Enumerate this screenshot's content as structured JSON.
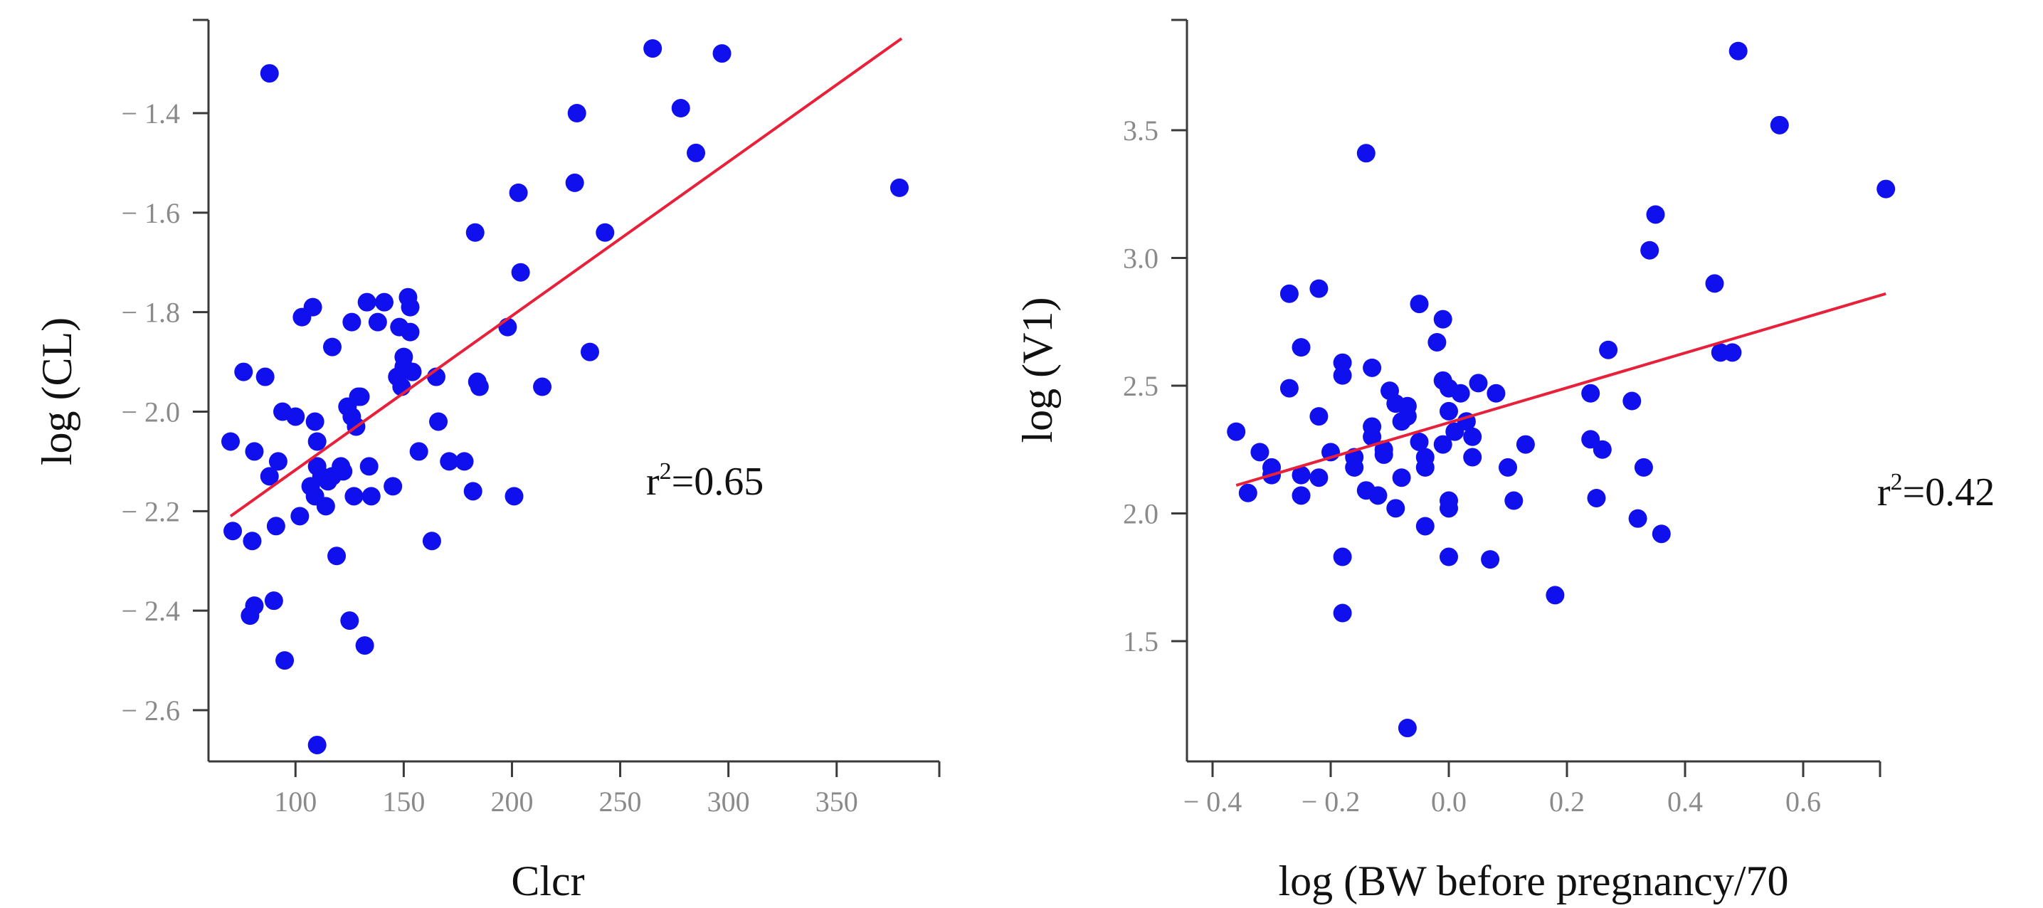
{
  "colors": {
    "point": "#1010ee",
    "fit_line": "#e8203a",
    "axis": "#3a3a3a",
    "tick_label": "#8a8a8a"
  },
  "chart_data": [
    {
      "type": "scatter",
      "title": "",
      "xlabel": "Clcr",
      "ylabel": "log (CL)",
      "annotation": "r²=0.65",
      "xlim": [
        60,
        385
      ],
      "ylim": [
        -2.7,
        -1.2
      ],
      "xticks": [
        100,
        150,
        200,
        250,
        300,
        350
      ],
      "xtick_labels": [
        "100",
        "150",
        "200",
        "250",
        "300",
        "350"
      ],
      "yticks": [
        -1.4,
        -1.6,
        -1.8,
        -2.0,
        -2.2,
        -2.4,
        -2.6
      ],
      "ytick_labels": [
        "− 1.4",
        "− 1.6",
        "− 1.8",
        "− 2.0",
        "− 2.2",
        "− 2.4",
        "− 2.6"
      ],
      "fit_line": {
        "x": [
          70,
          380
        ],
        "y": [
          -2.21,
          -1.25
        ]
      },
      "series": [
        {
          "name": "observations",
          "points": [
            [
              70,
              -2.06
            ],
            [
              71,
              -2.24
            ],
            [
              76,
              -1.92
            ],
            [
              79,
              -2.41
            ],
            [
              80,
              -2.26
            ],
            [
              81,
              -2.39
            ],
            [
              81,
              -2.08
            ],
            [
              86,
              -1.93
            ],
            [
              88,
              -2.13
            ],
            [
              88,
              -1.32
            ],
            [
              90,
              -2.38
            ],
            [
              91,
              -2.23
            ],
            [
              92,
              -2.1
            ],
            [
              94,
              -2.0
            ],
            [
              95,
              -2.5
            ],
            [
              100,
              -2.01
            ],
            [
              102,
              -2.21
            ],
            [
              103,
              -1.81
            ],
            [
              107,
              -2.15
            ],
            [
              108,
              -1.79
            ],
            [
              109,
              -2.17
            ],
            [
              109,
              -2.02
            ],
            [
              110,
              -2.67
            ],
            [
              110,
              -2.11
            ],
            [
              110,
              -2.06
            ],
            [
              112,
              -2.13
            ],
            [
              114,
              -2.19
            ],
            [
              115,
              -2.14
            ],
            [
              117,
              -1.87
            ],
            [
              117,
              -2.13
            ],
            [
              119,
              -2.29
            ],
            [
              121,
              -2.11
            ],
            [
              122,
              -2.12
            ],
            [
              124,
              -1.99
            ],
            [
              125,
              -2.42
            ],
            [
              126,
              -1.82
            ],
            [
              126,
              -2.01
            ],
            [
              127,
              -2.17
            ],
            [
              128,
              -2.03
            ],
            [
              129,
              -1.97
            ],
            [
              130,
              -1.97
            ],
            [
              132,
              -2.47
            ],
            [
              133,
              -1.78
            ],
            [
              134,
              -2.11
            ],
            [
              135,
              -2.17
            ],
            [
              138,
              -1.82
            ],
            [
              141,
              -1.78
            ],
            [
              145,
              -2.15
            ],
            [
              147,
              -1.93
            ],
            [
              148,
              -1.83
            ],
            [
              149,
              -1.95
            ],
            [
              150,
              -1.91
            ],
            [
              150,
              -1.89
            ],
            [
              152,
              -1.77
            ],
            [
              153,
              -1.79
            ],
            [
              153,
              -1.84
            ],
            [
              154,
              -1.92
            ],
            [
              157,
              -2.08
            ],
            [
              163,
              -2.26
            ],
            [
              165,
              -1.93
            ],
            [
              166,
              -2.02
            ],
            [
              171,
              -2.1
            ],
            [
              178,
              -2.1
            ],
            [
              182,
              -2.16
            ],
            [
              183,
              -1.64
            ],
            [
              184,
              -1.94
            ],
            [
              185,
              -1.95
            ],
            [
              198,
              -1.83
            ],
            [
              201,
              -2.17
            ],
            [
              203,
              -1.56
            ],
            [
              204,
              -1.72
            ],
            [
              214,
              -1.95
            ],
            [
              229,
              -1.54
            ],
            [
              230,
              -1.4
            ],
            [
              236,
              -1.88
            ],
            [
              243,
              -1.64
            ],
            [
              265,
              -1.27
            ],
            [
              278,
              -1.39
            ],
            [
              285,
              -1.48
            ],
            [
              297,
              -1.28
            ],
            [
              379,
              -1.55
            ]
          ]
        }
      ]
    },
    {
      "type": "scatter",
      "title": "",
      "xlabel": "log (BW before pregnancy/70",
      "ylabel": "log (V1)",
      "annotation": "r²=0.42",
      "xlim": [
        -0.4,
        0.75
      ],
      "ylim": [
        1.05,
        3.95
      ],
      "xticks": [
        -0.4,
        -0.2,
        0.0,
        0.2,
        0.4,
        0.6
      ],
      "xtick_labels": [
        "− 0.4",
        "− 0.2",
        "0.0",
        "0.2",
        "0.4",
        "0.6"
      ],
      "yticks": [
        1.5,
        2.0,
        2.5,
        3.0,
        3.5
      ],
      "ytick_labels": [
        "1.5",
        "2.0",
        "2.5",
        "3.0",
        "3.5"
      ],
      "fit_line": {
        "x": [
          -0.36,
          0.74
        ],
        "y": [
          2.11,
          2.86
        ]
      },
      "series": [
        {
          "name": "observations",
          "points": [
            [
              -0.36,
              2.32
            ],
            [
              -0.34,
              2.08
            ],
            [
              -0.32,
              2.24
            ],
            [
              -0.3,
              2.18
            ],
            [
              -0.3,
              2.15
            ],
            [
              -0.27,
              2.86
            ],
            [
              -0.27,
              2.49
            ],
            [
              -0.25,
              2.65
            ],
            [
              -0.25,
              2.07
            ],
            [
              -0.25,
              2.15
            ],
            [
              -0.22,
              2.88
            ],
            [
              -0.22,
              2.38
            ],
            [
              -0.22,
              2.14
            ],
            [
              -0.2,
              2.24
            ],
            [
              -0.18,
              2.59
            ],
            [
              -0.18,
              2.54
            ],
            [
              -0.18,
              1.83
            ],
            [
              -0.18,
              1.61
            ],
            [
              -0.16,
              2.22
            ],
            [
              -0.16,
              2.18
            ],
            [
              -0.14,
              3.41
            ],
            [
              -0.14,
              2.09
            ],
            [
              -0.13,
              2.57
            ],
            [
              -0.13,
              2.34
            ],
            [
              -0.13,
              2.3
            ],
            [
              -0.12,
              2.07
            ],
            [
              -0.11,
              2.25
            ],
            [
              -0.11,
              2.23
            ],
            [
              -0.1,
              2.48
            ],
            [
              -0.09,
              2.43
            ],
            [
              -0.09,
              2.02
            ],
            [
              -0.08,
              2.36
            ],
            [
              -0.08,
              2.14
            ],
            [
              -0.07,
              2.42
            ],
            [
              -0.07,
              2.38
            ],
            [
              -0.07,
              1.16
            ],
            [
              -0.05,
              2.82
            ],
            [
              -0.05,
              2.28
            ],
            [
              -0.04,
              2.22
            ],
            [
              -0.04,
              2.18
            ],
            [
              -0.04,
              1.95
            ],
            [
              -0.02,
              2.67
            ],
            [
              -0.01,
              2.76
            ],
            [
              -0.01,
              2.52
            ],
            [
              -0.01,
              2.27
            ],
            [
              0.0,
              2.49
            ],
            [
              0.0,
              2.4
            ],
            [
              0.0,
              2.05
            ],
            [
              0.0,
              2.02
            ],
            [
              0.0,
              1.83
            ],
            [
              0.01,
              2.32
            ],
            [
              0.02,
              2.47
            ],
            [
              0.03,
              2.36
            ],
            [
              0.04,
              2.3
            ],
            [
              0.04,
              2.22
            ],
            [
              0.05,
              2.51
            ],
            [
              0.07,
              1.82
            ],
            [
              0.08,
              2.47
            ],
            [
              0.1,
              2.18
            ],
            [
              0.11,
              2.05
            ],
            [
              0.13,
              2.27
            ],
            [
              0.18,
              1.68
            ],
            [
              0.24,
              2.47
            ],
            [
              0.24,
              2.29
            ],
            [
              0.25,
              2.06
            ],
            [
              0.26,
              2.25
            ],
            [
              0.27,
              2.64
            ],
            [
              0.31,
              2.44
            ],
            [
              0.32,
              1.98
            ],
            [
              0.33,
              2.18
            ],
            [
              0.34,
              3.03
            ],
            [
              0.35,
              3.17
            ],
            [
              0.36,
              1.92
            ],
            [
              0.45,
              2.9
            ],
            [
              0.46,
              2.63
            ],
            [
              0.48,
              2.63
            ],
            [
              0.49,
              3.81
            ],
            [
              0.56,
              3.52
            ],
            [
              0.74,
              3.27
            ]
          ]
        }
      ]
    }
  ]
}
